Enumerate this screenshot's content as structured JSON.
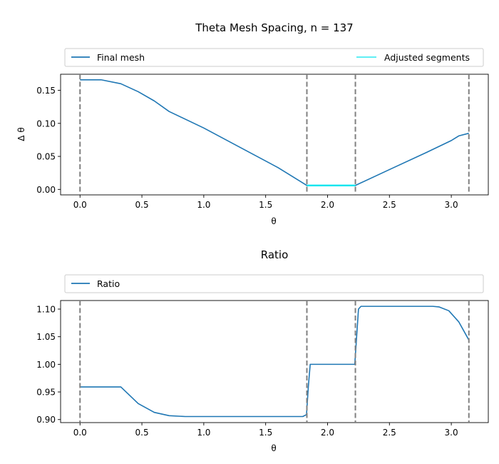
{
  "figure": {
    "title": "Theta Mesh Spacing, n = 137"
  },
  "chart_data": [
    {
      "type": "line",
      "title": "",
      "xlabel": "θ",
      "ylabel": "Δ θ",
      "xlim": [
        -0.157,
        3.299
      ],
      "ylim": [
        -0.0083,
        0.1744
      ],
      "xticks": [
        0.0,
        0.5,
        1.0,
        1.5,
        2.0,
        2.5,
        3.0
      ],
      "xtick_labels": [
        "0.0",
        "0.5",
        "1.0",
        "1.5",
        "2.0",
        "2.5",
        "3.0"
      ],
      "yticks": [
        0.0,
        0.05,
        0.1,
        0.15
      ],
      "ytick_labels": [
        "0.00",
        "0.05",
        "0.10",
        "0.15"
      ],
      "grid": false,
      "legend": {
        "placement": "top",
        "entries": [
          {
            "name": "Final mesh",
            "color": "#1f77b4"
          },
          {
            "name": "Adjusted segments",
            "color": "#00e5ee"
          }
        ]
      },
      "vlines": {
        "x": [
          0.0,
          1.833,
          2.225,
          3.142
        ],
        "color": "#808080",
        "style": "dashed"
      },
      "series": [
        {
          "name": "Final mesh",
          "color": "#1f77b4",
          "x": [
            0.0,
            0.17,
            0.33,
            0.47,
            0.6,
            0.72,
            1.0,
            1.3,
            1.6,
            1.833,
            2.225,
            2.5,
            2.8,
            3.0,
            3.06,
            3.142
          ],
          "y": [
            0.166,
            0.166,
            0.16,
            0.148,
            0.134,
            0.118,
            0.093,
            0.063,
            0.033,
            0.006,
            0.006,
            0.03,
            0.056,
            0.074,
            0.081,
            0.085
          ]
        },
        {
          "name": "Adjusted segments",
          "color": "#00e5ee",
          "x": [
            1.833,
            2.225
          ],
          "y": [
            0.006,
            0.006
          ]
        }
      ]
    },
    {
      "type": "line",
      "title": "Ratio",
      "xlabel": "θ",
      "ylabel": "",
      "xlim": [
        -0.157,
        3.299
      ],
      "ylim": [
        0.8945,
        1.1155
      ],
      "xticks": [
        0.0,
        0.5,
        1.0,
        1.5,
        2.0,
        2.5,
        3.0
      ],
      "xtick_labels": [
        "0.0",
        "0.5",
        "1.0",
        "1.5",
        "2.0",
        "2.5",
        "3.0"
      ],
      "yticks": [
        0.9,
        0.95,
        1.0,
        1.05,
        1.1
      ],
      "ytick_labels": [
        "0.90",
        "0.95",
        "1.00",
        "1.05",
        "1.10"
      ],
      "grid": false,
      "legend": {
        "placement": "top",
        "entries": [
          {
            "name": "Ratio",
            "color": "#1f77b4"
          }
        ]
      },
      "vlines": {
        "x": [
          0.0,
          1.833,
          2.225,
          3.142
        ],
        "color": "#808080",
        "style": "dashed"
      },
      "series": [
        {
          "name": "Ratio",
          "color": "#1f77b4",
          "x": [
            0.0,
            0.33,
            0.47,
            0.6,
            0.72,
            0.85,
            1.0,
            1.5,
            1.8,
            1.83,
            1.845,
            1.86,
            1.9,
            2.0,
            2.22,
            2.235,
            2.25,
            2.27,
            2.3,
            2.5,
            2.7,
            2.85,
            2.9,
            2.98,
            3.06,
            3.142
          ],
          "y": [
            0.959,
            0.959,
            0.929,
            0.913,
            0.907,
            0.9055,
            0.9055,
            0.9055,
            0.9055,
            0.909,
            0.96,
            1.0,
            1.0,
            1.0,
            1.0,
            1.05,
            1.1,
            1.105,
            1.105,
            1.105,
            1.105,
            1.105,
            1.104,
            1.097,
            1.077,
            1.044
          ]
        }
      ]
    }
  ]
}
